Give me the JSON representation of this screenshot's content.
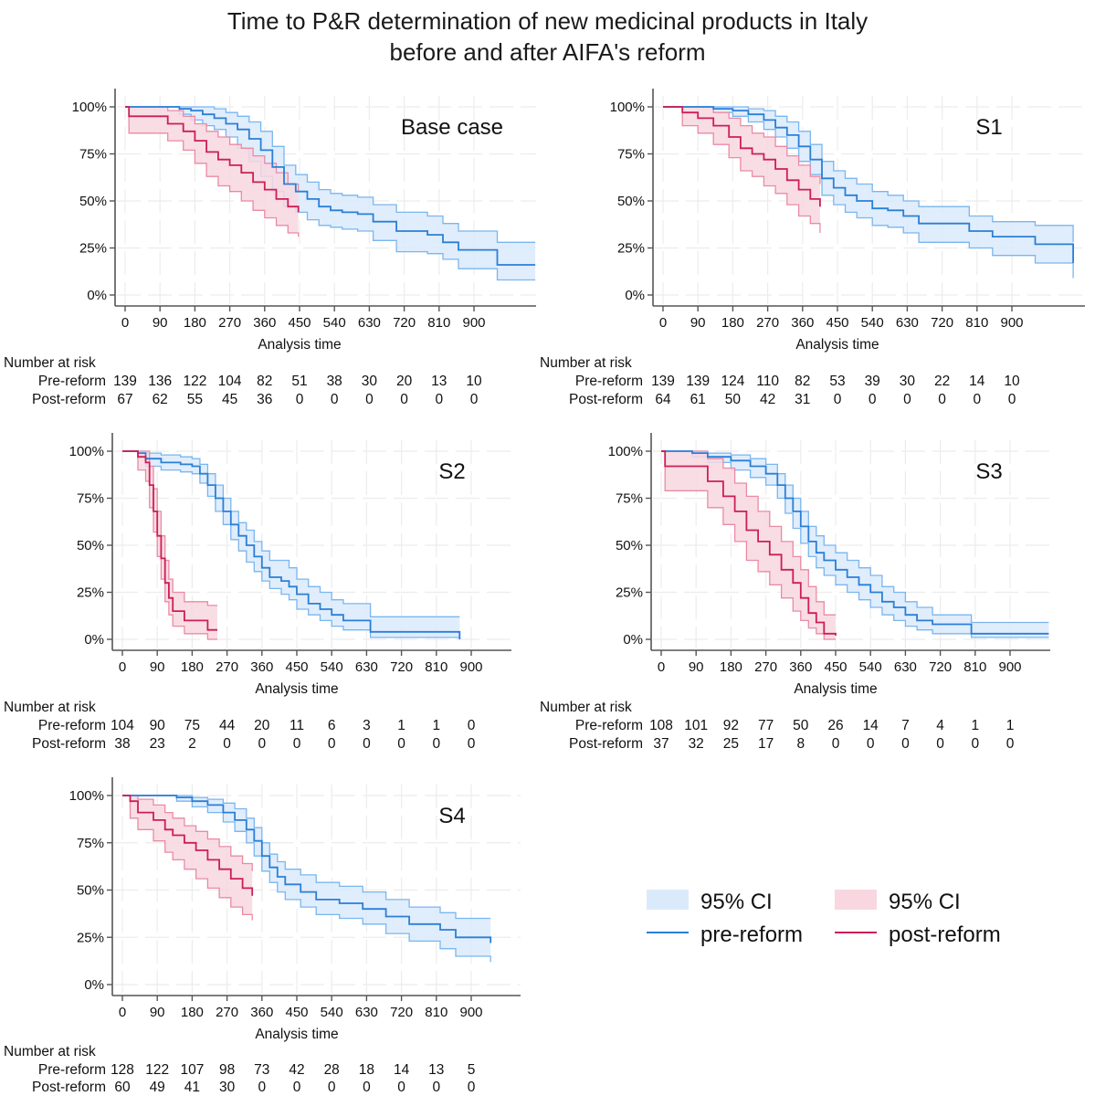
{
  "title_lines": [
    "Time to P&R determination of new medicinal products in Italy",
    "before and after AIFA's reform"
  ],
  "colors": {
    "pre_line": "#2a7fd6",
    "pre_ci_fill": "#dbeafb",
    "pre_ci_line": "#7ab6ee",
    "post_line": "#cc1f55",
    "post_ci_fill": "#f8d7e1",
    "post_ci_line": "#ea8aa5",
    "grid": "#ececec",
    "axis": "#555555"
  },
  "legend": {
    "position": "bottom-right",
    "items": [
      {
        "label": "95% CI",
        "type": "fill",
        "series": "pre"
      },
      {
        "label": "95% CI",
        "type": "fill",
        "series": "post"
      },
      {
        "label": "pre-reform",
        "type": "line",
        "series": "pre"
      },
      {
        "label": "post-reform",
        "type": "line",
        "series": "post"
      }
    ]
  },
  "risk_table_heading": "Number at risk",
  "risk_row_labels": [
    "Pre-reform",
    "Post-reform"
  ],
  "chart_data": [
    {
      "type": "line",
      "subtype": "kaplan-meier step",
      "panel": "Base case",
      "xlabel": "Analysis time",
      "ylabel": "",
      "xticks": [
        0,
        90,
        180,
        270,
        360,
        450,
        540,
        630,
        720,
        810,
        900
      ],
      "yticks": [
        "0%",
        "25%",
        "50%",
        "75%",
        "100%"
      ],
      "ylim": [
        0,
        100
      ],
      "xlim": [
        -25,
        1060
      ],
      "grid": true,
      "series": [
        {
          "name": "pre-reform",
          "x": [
            0,
            140,
            170,
            200,
            230,
            260,
            290,
            320,
            350,
            380,
            410,
            440,
            470,
            500,
            530,
            560,
            600,
            640,
            700,
            780,
            820,
            860,
            960,
            1058
          ],
          "y": [
            100,
            99,
            98,
            96,
            94,
            91,
            88,
            83,
            77,
            68,
            59,
            55,
            51,
            47,
            45,
            44,
            43,
            39,
            34,
            32,
            28,
            24,
            16,
            16
          ],
          "ci_lower": [
            100,
            96,
            93,
            90,
            88,
            84,
            78,
            71,
            63,
            55,
            47,
            44,
            40,
            37,
            36,
            35,
            34,
            29,
            23,
            22,
            19,
            14,
            8,
            8
          ],
          "ci_upper": [
            100,
            100,
            100,
            100,
            99,
            97,
            95,
            92,
            87,
            79,
            69,
            64,
            60,
            56,
            54,
            53,
            52,
            48,
            44,
            42,
            38,
            34,
            28,
            28
          ]
        },
        {
          "name": "post-reform",
          "x": [
            0,
            10,
            60,
            110,
            150,
            180,
            210,
            240,
            270,
            300,
            330,
            360,
            390,
            420,
            447
          ],
          "y": [
            100,
            95,
            95,
            91,
            87,
            82,
            76,
            72,
            69,
            65,
            60,
            56,
            51,
            47,
            44
          ],
          "ci_lower": [
            100,
            86,
            86,
            82,
            77,
            70,
            63,
            58,
            55,
            50,
            45,
            41,
            37,
            33,
            31
          ],
          "ci_upper": [
            100,
            100,
            100,
            98,
            95,
            91,
            87,
            84,
            80,
            78,
            74,
            70,
            65,
            59,
            55
          ]
        }
      ],
      "risk_table": {
        "pre_reform": [
          139,
          136,
          122,
          104,
          82,
          51,
          38,
          30,
          20,
          13,
          10
        ],
        "post_reform": [
          67,
          62,
          55,
          45,
          36,
          0,
          0,
          0,
          0,
          0,
          0
        ]
      }
    },
    {
      "type": "line",
      "subtype": "kaplan-meier step",
      "panel": "S1",
      "xlabel": "Analysis time",
      "xticks": [
        0,
        90,
        180,
        270,
        360,
        450,
        540,
        630,
        720,
        810,
        900
      ],
      "yticks": [
        "0%",
        "25%",
        "50%",
        "75%",
        "100%"
      ],
      "ylim": [
        0,
        100
      ],
      "xlim": [
        -25,
        1060
      ],
      "grid": true,
      "series": [
        {
          "name": "pre-reform",
          "x": [
            0,
            130,
            180,
            220,
            260,
            290,
            320,
            350,
            380,
            410,
            440,
            470,
            500,
            540,
            580,
            620,
            660,
            740,
            790,
            850,
            960,
            1058
          ],
          "y": [
            100,
            99,
            98,
            96,
            93,
            89,
            85,
            79,
            72,
            62,
            57,
            53,
            50,
            46,
            45,
            42,
            38,
            38,
            34,
            31,
            27,
            17
          ],
          "ci_lower": [
            100,
            97,
            95,
            92,
            88,
            84,
            78,
            71,
            64,
            53,
            48,
            44,
            41,
            37,
            36,
            33,
            28,
            28,
            25,
            21,
            17,
            9
          ],
          "ci_upper": [
            100,
            100,
            100,
            99,
            98,
            95,
            92,
            87,
            80,
            71,
            66,
            62,
            59,
            55,
            53,
            50,
            47,
            47,
            42,
            39,
            37,
            28
          ]
        },
        {
          "name": "post-reform",
          "x": [
            0,
            50,
            90,
            130,
            170,
            200,
            230,
            260,
            290,
            320,
            350,
            380,
            405
          ],
          "y": [
            100,
            97,
            94,
            90,
            84,
            78,
            75,
            72,
            67,
            61,
            56,
            51,
            47
          ],
          "ci_lower": [
            100,
            90,
            86,
            80,
            73,
            66,
            63,
            58,
            54,
            48,
            42,
            38,
            33
          ],
          "ci_upper": [
            100,
            100,
            100,
            97,
            94,
            90,
            86,
            84,
            79,
            74,
            69,
            63,
            59
          ]
        }
      ],
      "risk_table": {
        "pre_reform": [
          139,
          139,
          124,
          110,
          82,
          53,
          39,
          30,
          22,
          14,
          10
        ],
        "post_reform": [
          64,
          61,
          50,
          42,
          31,
          0,
          0,
          0,
          0,
          0,
          0
        ]
      }
    },
    {
      "type": "line",
      "subtype": "kaplan-meier step",
      "panel": "S2",
      "xlabel": "Analysis time",
      "xticks": [
        0,
        90,
        180,
        270,
        360,
        450,
        540,
        630,
        720,
        810,
        900
      ],
      "yticks": [
        "0%",
        "25%",
        "50%",
        "75%",
        "100%"
      ],
      "ylim": [
        0,
        100
      ],
      "xlim": [
        -25,
        1060
      ],
      "grid": true,
      "series": [
        {
          "name": "pre-reform",
          "x": [
            0,
            40,
            60,
            100,
            150,
            180,
            200,
            220,
            240,
            260,
            280,
            300,
            320,
            340,
            360,
            380,
            410,
            430,
            450,
            480,
            510,
            540,
            570,
            630,
            640,
            860,
            870
          ],
          "y": [
            100,
            99,
            96,
            94,
            93,
            92,
            88,
            82,
            75,
            68,
            61,
            55,
            50,
            44,
            38,
            33,
            31,
            28,
            24,
            19,
            16,
            13,
            10,
            10,
            4,
            4,
            0
          ],
          "ci_lower": [
            100,
            97,
            92,
            90,
            89,
            88,
            83,
            76,
            68,
            61,
            53,
            47,
            41,
            36,
            31,
            27,
            24,
            21,
            16,
            13,
            10,
            7,
            5,
            5,
            1,
            1,
            1
          ],
          "ci_upper": [
            100,
            100,
            99,
            98,
            97,
            96,
            93,
            88,
            82,
            75,
            68,
            62,
            58,
            52,
            47,
            42,
            42,
            38,
            32,
            28,
            25,
            21,
            19,
            19,
            12,
            12,
            12
          ]
        },
        {
          "name": "post-reform",
          "x": [
            0,
            40,
            60,
            70,
            80,
            90,
            100,
            110,
            120,
            130,
            160,
            220,
            245
          ],
          "y": [
            100,
            97,
            94,
            82,
            68,
            55,
            43,
            30,
            22,
            15,
            10,
            5,
            5
          ],
          "ci_lower": [
            100,
            90,
            84,
            70,
            57,
            44,
            32,
            20,
            13,
            7,
            3,
            0,
            0
          ],
          "ci_upper": [
            100,
            100,
            100,
            92,
            80,
            68,
            55,
            42,
            32,
            25,
            20,
            18,
            18
          ]
        }
      ],
      "risk_table": {
        "pre_reform": [
          104,
          90,
          75,
          44,
          20,
          11,
          6,
          3,
          1,
          1,
          0
        ],
        "post_reform": [
          38,
          23,
          2,
          0,
          0,
          0,
          0,
          0,
          0,
          0,
          0
        ]
      }
    },
    {
      "type": "line",
      "subtype": "kaplan-meier step",
      "panel": "S3",
      "xlabel": "Analysis time",
      "xticks": [
        0,
        90,
        180,
        270,
        360,
        450,
        540,
        630,
        720,
        810,
        900
      ],
      "yticks": [
        "0%",
        "25%",
        "50%",
        "75%",
        "100%"
      ],
      "ylim": [
        0,
        100
      ],
      "xlim": [
        -25,
        1060
      ],
      "grid": true,
      "series": [
        {
          "name": "pre-reform",
          "x": [
            0,
            80,
            120,
            180,
            230,
            270,
            300,
            320,
            340,
            360,
            380,
            400,
            420,
            450,
            480,
            510,
            540,
            570,
            600,
            630,
            660,
            700,
            800,
            1000
          ],
          "y": [
            100,
            99,
            97,
            95,
            92,
            88,
            82,
            75,
            68,
            60,
            52,
            46,
            42,
            37,
            33,
            29,
            25,
            20,
            17,
            13,
            10,
            8,
            3,
            3
          ],
          "ci_lower": [
            100,
            97,
            94,
            90,
            86,
            82,
            75,
            67,
            59,
            51,
            44,
            38,
            34,
            29,
            25,
            21,
            17,
            13,
            10,
            7,
            5,
            3,
            1,
            1
          ],
          "ci_upper": [
            100,
            100,
            99,
            98,
            96,
            93,
            88,
            82,
            75,
            68,
            60,
            55,
            50,
            46,
            42,
            38,
            34,
            28,
            25,
            20,
            17,
            13,
            9,
            9
          ]
        },
        {
          "name": "post-reform",
          "x": [
            0,
            10,
            60,
            120,
            160,
            190,
            220,
            250,
            280,
            310,
            340,
            360,
            380,
            400,
            420,
            450
          ],
          "y": [
            100,
            92,
            92,
            84,
            76,
            68,
            58,
            52,
            45,
            37,
            30,
            22,
            14,
            9,
            3,
            2
          ],
          "ci_lower": [
            100,
            79,
            79,
            70,
            61,
            52,
            42,
            36,
            29,
            22,
            15,
            10,
            6,
            3,
            0,
            0
          ],
          "ci_upper": [
            100,
            100,
            100,
            96,
            91,
            83,
            76,
            68,
            60,
            52,
            44,
            37,
            28,
            20,
            13,
            13
          ]
        }
      ],
      "risk_table": {
        "pre_reform": [
          108,
          101,
          92,
          77,
          50,
          26,
          14,
          7,
          4,
          1,
          1
        ],
        "post_reform": [
          37,
          32,
          25,
          17,
          8,
          0,
          0,
          0,
          0,
          0,
          0
        ]
      }
    },
    {
      "type": "line",
      "subtype": "kaplan-meier step",
      "panel": "S4",
      "xlabel": "Analysis time",
      "xticks": [
        0,
        90,
        180,
        270,
        360,
        450,
        540,
        630,
        720,
        810,
        900
      ],
      "yticks": [
        "0%",
        "25%",
        "50%",
        "75%",
        "100%"
      ],
      "ylim": [
        0,
        100
      ],
      "xlim": [
        -25,
        1060
      ],
      "grid": true,
      "series": [
        {
          "name": "pre-reform",
          "x": [
            0,
            140,
            180,
            220,
            260,
            290,
            320,
            340,
            360,
            380,
            400,
            420,
            460,
            500,
            560,
            620,
            680,
            740,
            820,
            860,
            950
          ],
          "y": [
            100,
            99,
            97,
            95,
            91,
            87,
            82,
            76,
            68,
            62,
            57,
            53,
            49,
            45,
            43,
            40,
            36,
            32,
            29,
            25,
            22
          ],
          "ci_lower": [
            100,
            97,
            94,
            91,
            86,
            81,
            75,
            68,
            60,
            54,
            49,
            45,
            41,
            37,
            35,
            32,
            27,
            23,
            19,
            15,
            12
          ],
          "ci_upper": [
            100,
            100,
            99,
            98,
            96,
            93,
            88,
            83,
            75,
            69,
            65,
            61,
            58,
            54,
            52,
            49,
            45,
            41,
            38,
            35,
            35
          ]
        },
        {
          "name": "post-reform",
          "x": [
            0,
            20,
            40,
            80,
            110,
            130,
            160,
            190,
            220,
            250,
            280,
            310,
            335
          ],
          "y": [
            100,
            97,
            91,
            87,
            82,
            79,
            75,
            71,
            66,
            61,
            56,
            51,
            47
          ],
          "ci_lower": [
            100,
            88,
            82,
            76,
            70,
            66,
            61,
            56,
            51,
            46,
            41,
            37,
            34
          ],
          "ci_upper": [
            100,
            100,
            98,
            95,
            91,
            88,
            84,
            81,
            77,
            73,
            68,
            64,
            60
          ]
        }
      ],
      "risk_table": {
        "pre_reform": [
          128,
          122,
          107,
          98,
          73,
          42,
          28,
          18,
          14,
          13,
          5
        ],
        "post_reform": [
          60,
          49,
          41,
          30,
          0,
          0,
          0,
          0,
          0,
          0,
          0
        ]
      }
    }
  ]
}
